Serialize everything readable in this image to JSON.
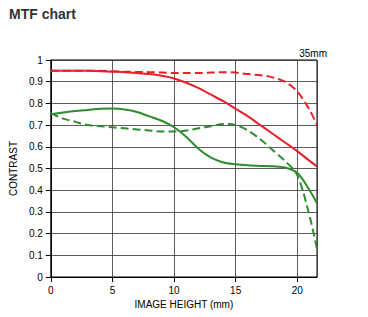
{
  "chart_data": {
    "type": "line",
    "title": "MTF chart",
    "annotation": "35mm",
    "x_label": "IMAGE HEIGHT (mm)",
    "y_label": "CONTRAST",
    "x": [
      0,
      1,
      2,
      3,
      4,
      5,
      6,
      7,
      8,
      9,
      10,
      11,
      12,
      13,
      14,
      15,
      16,
      17,
      18,
      19,
      20,
      21,
      21.6
    ],
    "series": [
      {
        "color": "#e8202a",
        "line_style": "solid",
        "values": [
          0.95,
          0.95,
          0.95,
          0.95,
          0.948,
          0.946,
          0.944,
          0.94,
          0.935,
          0.927,
          0.915,
          0.895,
          0.87,
          0.84,
          0.81,
          0.775,
          0.74,
          0.7,
          0.66,
          0.62,
          0.58,
          0.535,
          0.51
        ]
      },
      {
        "color": "#e8202a",
        "line_style": "dashed",
        "values": [
          0.95,
          0.95,
          0.95,
          0.95,
          0.95,
          0.948,
          0.946,
          0.945,
          0.944,
          0.942,
          0.94,
          0.94,
          0.94,
          0.942,
          0.944,
          0.942,
          0.935,
          0.93,
          0.92,
          0.9,
          0.855,
          0.77,
          0.7
        ]
      },
      {
        "color": "#2e8b2e",
        "line_style": "solid",
        "values": [
          0.75,
          0.758,
          0.765,
          0.77,
          0.775,
          0.776,
          0.772,
          0.76,
          0.74,
          0.72,
          0.69,
          0.645,
          0.59,
          0.55,
          0.528,
          0.52,
          0.515,
          0.512,
          0.51,
          0.505,
          0.48,
          0.4,
          0.34
        ]
      },
      {
        "color": "#2e8b2e",
        "line_style": "dashed",
        "values": [
          0.755,
          0.73,
          0.715,
          0.7,
          0.695,
          0.69,
          0.685,
          0.68,
          0.675,
          0.67,
          0.67,
          0.675,
          0.685,
          0.695,
          0.705,
          0.7,
          0.675,
          0.635,
          0.585,
          0.535,
          0.47,
          0.28,
          0.13
        ]
      }
    ],
    "xlim": [
      0,
      21.6
    ],
    "xticks": [
      0,
      5,
      10,
      15,
      20
    ],
    "ylim": [
      0,
      1
    ],
    "yticks": [
      0,
      0.1,
      0.2,
      0.3,
      0.4,
      0.5,
      0.6,
      0.7,
      0.8,
      0.9,
      1
    ],
    "grid": true
  }
}
